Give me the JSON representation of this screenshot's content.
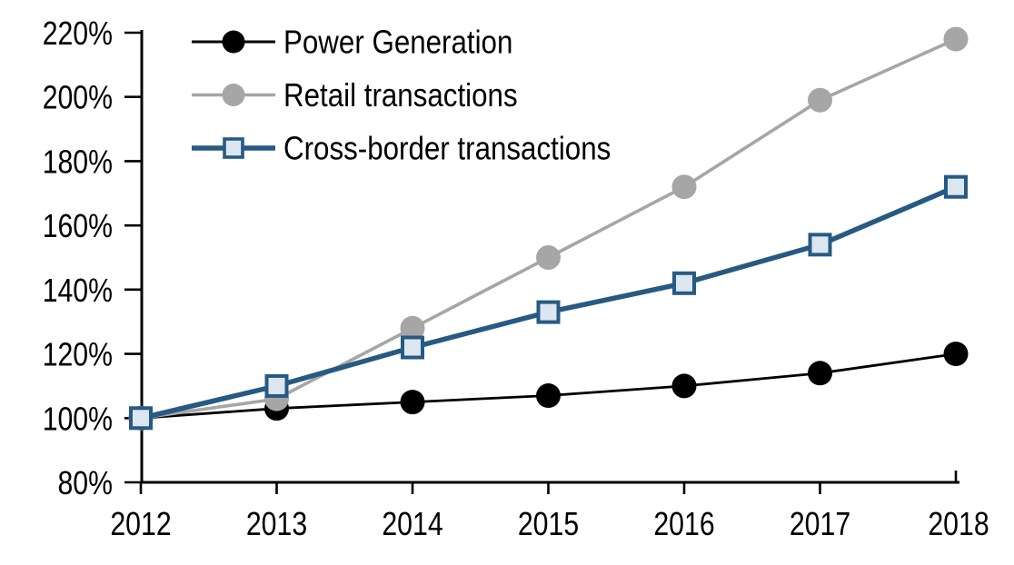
{
  "chart": {
    "background_color": "#ffffff",
    "axis_color": "#000000",
    "label_color": "#000000"
  },
  "chart_data": {
    "type": "line",
    "title": "",
    "xlabel": "",
    "ylabel": "",
    "grid": false,
    "legend_position": "top-left",
    "categories": [
      "2012",
      "2013",
      "2014",
      "2015",
      "2016",
      "2017",
      "2018"
    ],
    "series": [
      {
        "name": "Power Generation",
        "values": [
          100,
          103,
          105,
          107,
          110,
          114,
          120
        ],
        "color": "#000000",
        "marker": "circle",
        "marker_fill": "#000000",
        "line_width": 2.8
      },
      {
        "name": "Retail transactions",
        "values": [
          100,
          106,
          128,
          150,
          172,
          199,
          218
        ],
        "color": "#a6a6a6",
        "marker": "circle",
        "marker_fill": "#a6a6a6",
        "line_width": 3.6
      },
      {
        "name": "Cross-border transactions",
        "values": [
          100,
          110,
          122,
          133,
          142,
          154,
          172
        ],
        "color": "#275a82",
        "marker": "square",
        "marker_fill": "#dce6f1",
        "line_width": 5.5
      }
    ],
    "ylim": [
      80,
      220
    ],
    "ytick_step": 20,
    "ytick_labels": [
      "80%",
      "100%",
      "120%",
      "140%",
      "160%",
      "180%",
      "200%",
      "220%"
    ],
    "xtick_labels": [
      "2012",
      "2013",
      "2014",
      "2015",
      "2016",
      "2017",
      "2018"
    ]
  }
}
